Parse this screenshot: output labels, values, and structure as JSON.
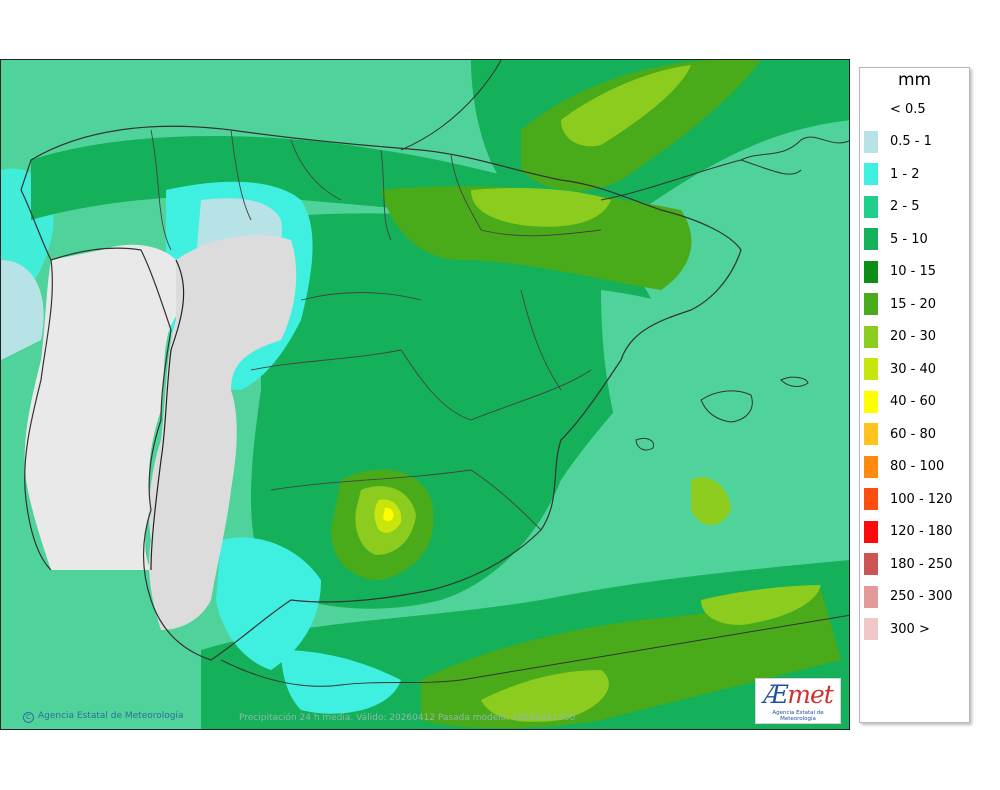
{
  "map": {
    "credit": "Agencia Estatal de Meteorología",
    "caption": "Precipitación 24 h media. Válido: 20260412 Pasada modelo: 20260411200"
  },
  "logo": {
    "mark_a": "Æ",
    "mark_b": "met",
    "sub": "Agencia Estatal de Meteorología"
  },
  "legend": {
    "unit": "mm",
    "items": [
      {
        "label": "< 0.5",
        "color": "#ffffff"
      },
      {
        "label": "0.5 - 1",
        "color": "#b7e3e6"
      },
      {
        "label": "1 - 2",
        "color": "#3ff0e0"
      },
      {
        "label": "2 - 5",
        "color": "#1fcf8a"
      },
      {
        "label": "5 - 10",
        "color": "#14b05a"
      },
      {
        "label": "10 - 15",
        "color": "#0b8f12"
      },
      {
        "label": "15 - 20",
        "color": "#4aab1a"
      },
      {
        "label": "20 - 30",
        "color": "#8ccc1f"
      },
      {
        "label": "30 - 40",
        "color": "#c8e60e"
      },
      {
        "label": "40 - 60",
        "color": "#ffff00"
      },
      {
        "label": "60 - 80",
        "color": "#ffc21f"
      },
      {
        "label": "80 - 100",
        "color": "#ff8a10"
      },
      {
        "label": "100 - 120",
        "color": "#ff4c10"
      },
      {
        "label": "120 - 180",
        "color": "#ff0a0a"
      },
      {
        "label": "180 - 250",
        "color": "#cc5454"
      },
      {
        "label": "250 - 300",
        "color": "#e39a9a"
      },
      {
        "label": "300 >",
        "color": "#f0c8c8"
      }
    ]
  }
}
